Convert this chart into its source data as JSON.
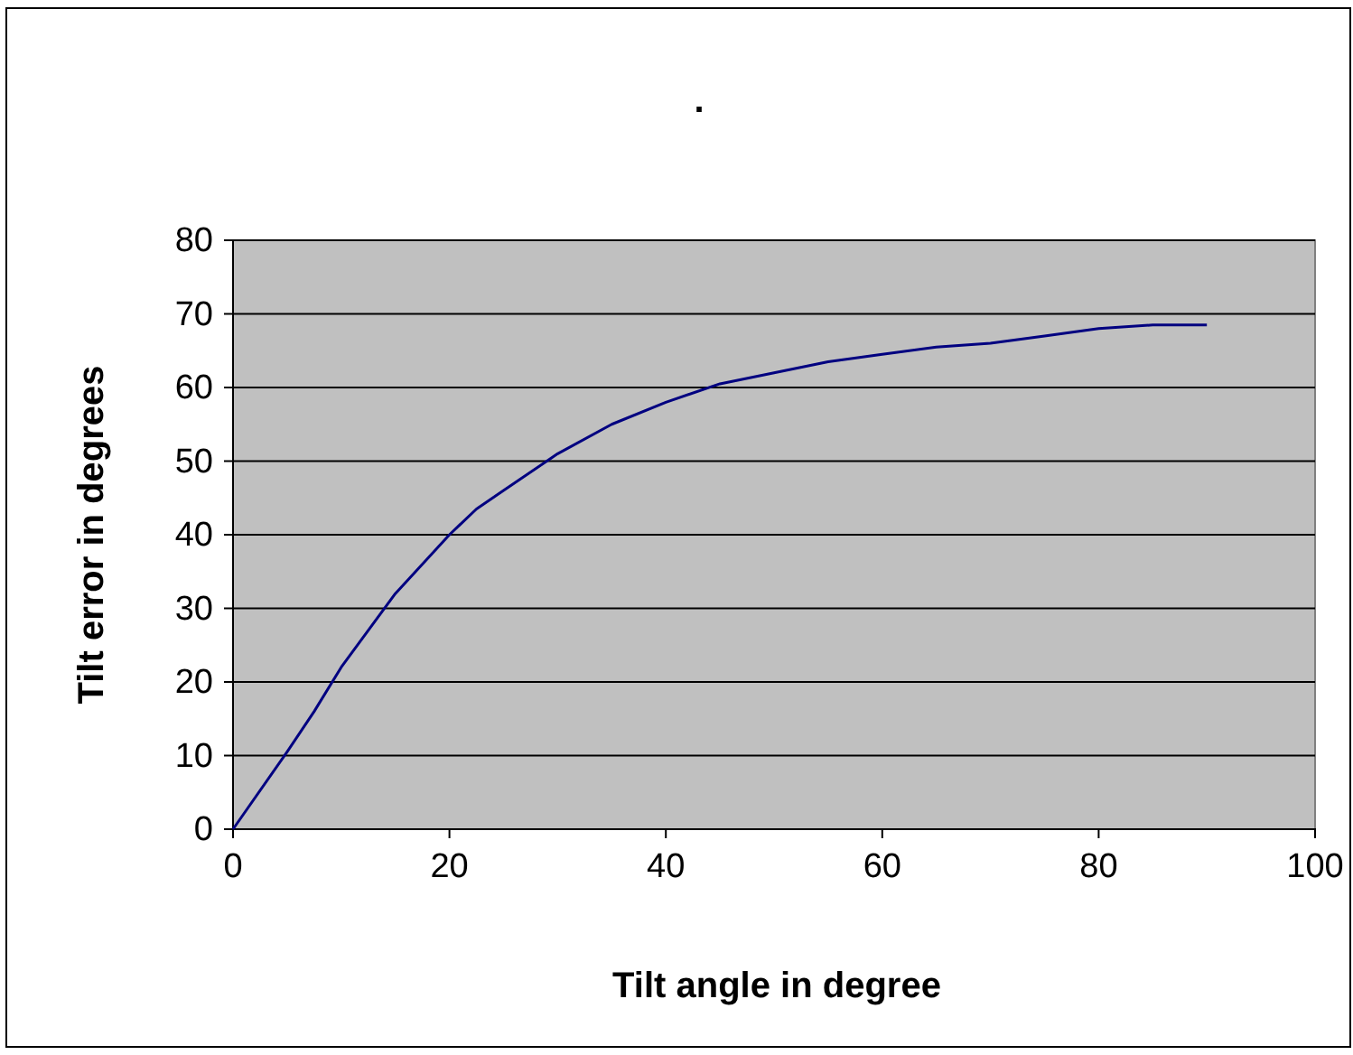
{
  "chart_data": {
    "type": "line",
    "title": ".",
    "xlabel": "Tilt angle in degree",
    "ylabel": "Tilt error in degrees",
    "x": [
      0,
      5,
      7.5,
      10,
      15,
      20,
      22.5,
      25,
      30,
      35,
      40,
      45,
      50,
      55,
      60,
      65,
      70,
      75,
      80,
      85,
      90
    ],
    "series": [
      {
        "color": "#000080",
        "values": [
          0,
          10.5,
          16,
          22,
          32,
          40,
          43.5,
          46,
          51,
          55,
          58,
          60.5,
          62,
          63.5,
          64.5,
          65.5,
          66,
          67,
          68,
          68.5,
          68.5
        ]
      }
    ],
    "xlim": [
      0,
      100
    ],
    "xticks": [
      0,
      20,
      40,
      60,
      80,
      100
    ],
    "ylim": [
      0,
      80
    ],
    "yticks": [
      0,
      10,
      20,
      30,
      40,
      50,
      60,
      70,
      80
    ],
    "grid": "y",
    "marker": "none",
    "line_style": "solid"
  }
}
